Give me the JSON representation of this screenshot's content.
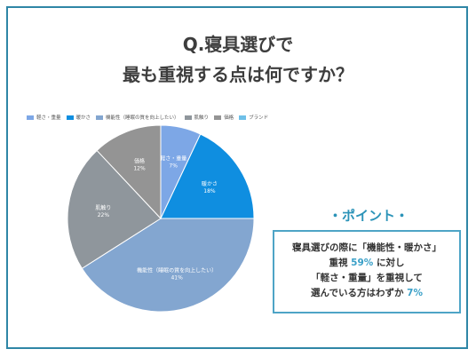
{
  "title_line1": "Q.寝具選びで",
  "title_line2": "最も重視する点は何ですか？",
  "chart_data": {
    "type": "pie",
    "title": "",
    "legend_position": "top-left",
    "slices": [
      {
        "name": "軽さ・重量",
        "label": "軽さ・重量",
        "value": 7,
        "value_label": "7%",
        "color": "#7da7e6"
      },
      {
        "name": "暖かさ",
        "label": "暖かさ",
        "value": 18,
        "value_label": "18%",
        "color": "#0f8ee0"
      },
      {
        "name": "機能性（睡眠の質を向上したい）",
        "label": "機能性（睡眠の質を向上したい）",
        "value": 41,
        "value_label": "41%",
        "color": "#83a6d0"
      },
      {
        "name": "肌触り",
        "label": "肌触り",
        "value": 22,
        "value_label": "22%",
        "color": "#8f969c"
      },
      {
        "name": "価格",
        "label": "価格",
        "value": 12,
        "value_label": "12%",
        "color": "#949494"
      },
      {
        "name": "ブランド",
        "label": "ブランド",
        "value": 0,
        "value_label": "",
        "color": "#6fc0e8"
      }
    ],
    "legend": [
      {
        "label": "軽さ・重量",
        "color": "#7da7e6"
      },
      {
        "label": "暖かさ",
        "color": "#0f8ee0"
      },
      {
        "label": "機能性（睡眠の質を向上したい）",
        "color": "#83a6d0"
      },
      {
        "label": "肌触り",
        "color": "#8f969c"
      },
      {
        "label": "価格",
        "color": "#949494"
      },
      {
        "label": "ブランド",
        "color": "#6fc0e8"
      }
    ]
  },
  "point": {
    "heading": "・ポイント・",
    "line1": "寝具選びの際に「機能性・暖かさ」",
    "line2_pre": "重視 ",
    "line2_hl": "59%",
    "line2_post": " に対し",
    "line3": "「軽さ・重量」を重視して",
    "line4_pre": "選んでいる方はわずか ",
    "line4_hl": "7%"
  }
}
